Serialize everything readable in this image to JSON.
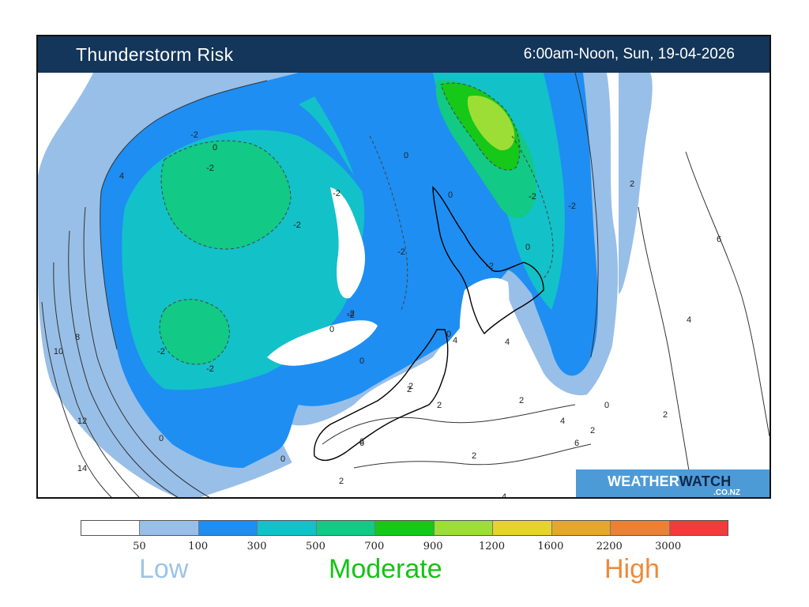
{
  "header": {
    "title": "Thunderstorm Risk",
    "valid_time": "6:00am-Noon, Sun, 19-04-2026"
  },
  "logo": {
    "main_part1": "WEATHER",
    "main_part2": "WATCH",
    "sub": ".CO.NZ"
  },
  "legend": {
    "colors": [
      "#ffffff",
      "#98bfe8",
      "#1e8ef2",
      "#13c1c9",
      "#12c985",
      "#16c818",
      "#9dde36",
      "#e6d42c",
      "#e5a82c",
      "#ec8133",
      "#f23b3b"
    ],
    "ticks": [
      "50",
      "100",
      "300",
      "500",
      "700",
      "900",
      "1200",
      "1600",
      "2200",
      "3000"
    ],
    "risk_words": [
      {
        "text": "Low",
        "color": "#9cc4e8"
      },
      {
        "text": "Moderate",
        "color": "#14c314"
      },
      {
        "text": "High",
        "color": "#ec8a3a"
      }
    ]
  },
  "map": {
    "contour_labels": [
      "-2",
      "0",
      "-2",
      "4",
      "-2",
      "-2",
      "0",
      "-2",
      "-2",
      "-2",
      "-2",
      "0",
      "-2",
      "0",
      "-2",
      "-2",
      "-2",
      "0",
      "8",
      "10",
      "12",
      "14",
      "0",
      "0",
      "0",
      "0",
      "4",
      "2",
      "2",
      "2",
      "6",
      "4",
      "2",
      "2",
      "6",
      "4",
      "2",
      "2",
      "4",
      "6",
      "2",
      "4",
      "0",
      "2",
      "6"
    ]
  }
}
